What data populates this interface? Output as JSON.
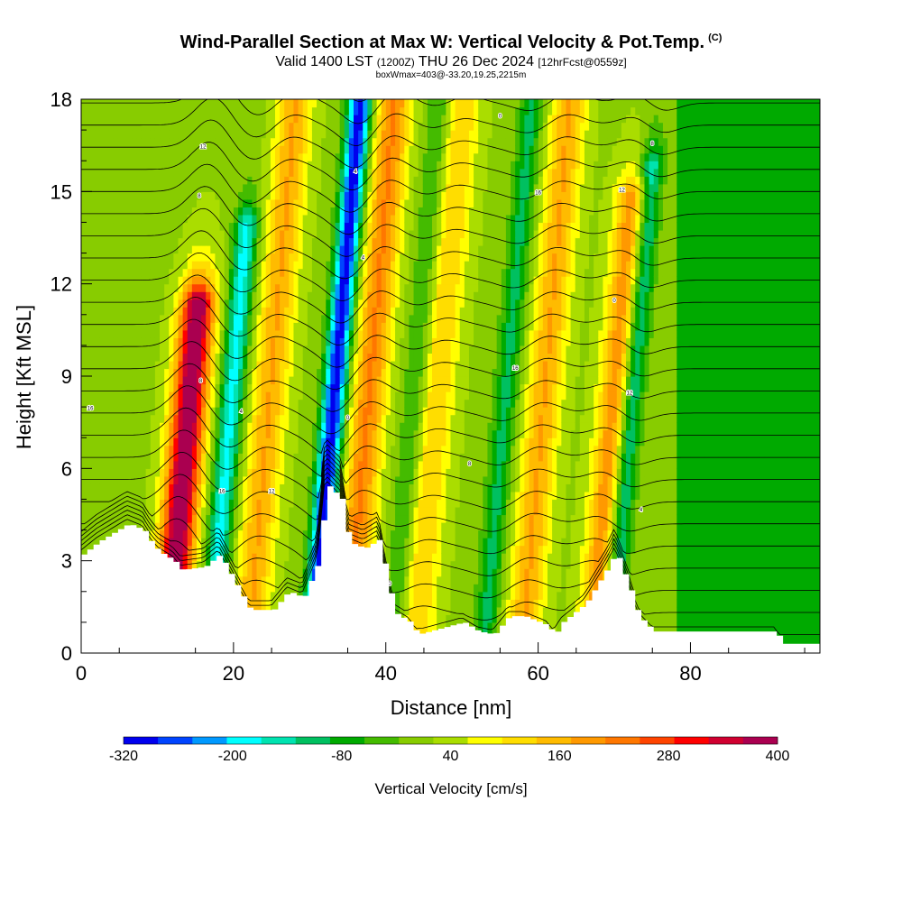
{
  "header": {
    "title": "Wind-Parallel Section at Max W: Vertical Velocity & Pot.Temp.",
    "copyright": "(C)",
    "valid_prefix": "Valid 1400 LST",
    "valid_utc": "(1200Z)",
    "valid_date": "THU 26 Dec 2024",
    "forecast": "[12hrFcst@0559z]",
    "box_info": "boxWmax=403@-33.20,19.25,2215m"
  },
  "chart_data": {
    "type": "heatmap",
    "title": "Wind-Parallel Section at Max W: Vertical Velocity & Pot.Temp.",
    "xlabel": "Distance [nm]",
    "ylabel": "Height [Kft MSL]",
    "xlim": [
      0,
      97
    ],
    "ylim": [
      0,
      18
    ],
    "x_ticks": [
      0,
      20,
      40,
      60,
      80
    ],
    "y_ticks": [
      0,
      3,
      6,
      9,
      12,
      15,
      18
    ],
    "updraft_bands": [
      {
        "x_center": 14.5,
        "top": 11.5,
        "peak_w": 400
      },
      {
        "x_center": 25,
        "top": 18,
        "peak_w": 160
      },
      {
        "x_center": 38,
        "top": 18,
        "peak_w": 200
      },
      {
        "x_center": 47,
        "top": 18,
        "peak_w": 120
      },
      {
        "x_center": 61,
        "top": 18,
        "peak_w": 160
      },
      {
        "x_center": 70.5,
        "top": 15,
        "peak_w": 200
      }
    ],
    "downdraft_bands": [
      {
        "x_center": 20,
        "top": 14,
        "peak_w": -200
      },
      {
        "x_center": 33.5,
        "top": 18,
        "peak_w": -320
      },
      {
        "x_center": 44,
        "top": 18,
        "peak_w": -80
      },
      {
        "x_center": 56,
        "top": 18,
        "peak_w": -120
      },
      {
        "x_center": 72.5,
        "top": 16,
        "peak_w": -200
      }
    ],
    "terrain": [
      {
        "x": 0,
        "h": 3.2
      },
      {
        "x": 2,
        "h": 3.6
      },
      {
        "x": 4,
        "h": 3.9
      },
      {
        "x": 6,
        "h": 4.2
      },
      {
        "x": 8,
        "h": 4.0
      },
      {
        "x": 9,
        "h": 3.6
      },
      {
        "x": 10,
        "h": 3.3
      },
      {
        "x": 12,
        "h": 3.0
      },
      {
        "x": 13,
        "h": 2.7
      },
      {
        "x": 16,
        "h": 2.8
      },
      {
        "x": 18,
        "h": 3.2
      },
      {
        "x": 20,
        "h": 2.3
      },
      {
        "x": 22,
        "h": 1.4
      },
      {
        "x": 25,
        "h": 1.4
      },
      {
        "x": 27,
        "h": 2.0
      },
      {
        "x": 29,
        "h": 1.8
      },
      {
        "x": 31,
        "h": 3.0
      },
      {
        "x": 32,
        "h": 5.5
      },
      {
        "x": 34,
        "h": 5.0
      },
      {
        "x": 35,
        "h": 3.6
      },
      {
        "x": 37,
        "h": 3.4
      },
      {
        "x": 39,
        "h": 3.7
      },
      {
        "x": 40,
        "h": 2.4
      },
      {
        "x": 41,
        "h": 1.3
      },
      {
        "x": 43,
        "h": 1.0
      },
      {
        "x": 44,
        "h": 0.6
      },
      {
        "x": 50,
        "h": 1.0
      },
      {
        "x": 52,
        "h": 0.7
      },
      {
        "x": 54,
        "h": 0.6
      },
      {
        "x": 56,
        "h": 1.2
      },
      {
        "x": 58,
        "h": 1.2
      },
      {
        "x": 61,
        "h": 0.9
      },
      {
        "x": 62,
        "h": 0.6
      },
      {
        "x": 63,
        "h": 1.0
      },
      {
        "x": 66,
        "h": 1.6
      },
      {
        "x": 69,
        "h": 2.8
      },
      {
        "x": 70,
        "h": 3.3
      },
      {
        "x": 72,
        "h": 2.0
      },
      {
        "x": 73,
        "h": 1.2
      },
      {
        "x": 75,
        "h": 0.7
      },
      {
        "x": 91,
        "h": 0.7
      },
      {
        "x": 92,
        "h": 0.3
      },
      {
        "x": 97,
        "h": 0.3
      }
    ],
    "theta_contour_labels": [
      "16",
      "12",
      "8",
      "4",
      "0"
    ],
    "colorbar": {
      "label": "Vertical Velocity [cm/s]",
      "tick_labels": [
        "-320",
        "-200",
        "-80",
        "40",
        "160",
        "280",
        "400"
      ],
      "tick_values": [
        -320,
        -200,
        -80,
        40,
        160,
        280,
        400
      ],
      "colors": [
        "#0000ee",
        "#0044ff",
        "#0099ff",
        "#00ffff",
        "#00e3b0",
        "#00c060",
        "#00aa00",
        "#44bb00",
        "#88cc00",
        "#aadd00",
        "#ffff00",
        "#ffdd00",
        "#ffbb00",
        "#ff9900",
        "#ff7700",
        "#ff4400",
        "#ff0000",
        "#d00030",
        "#aa0050"
      ]
    }
  }
}
